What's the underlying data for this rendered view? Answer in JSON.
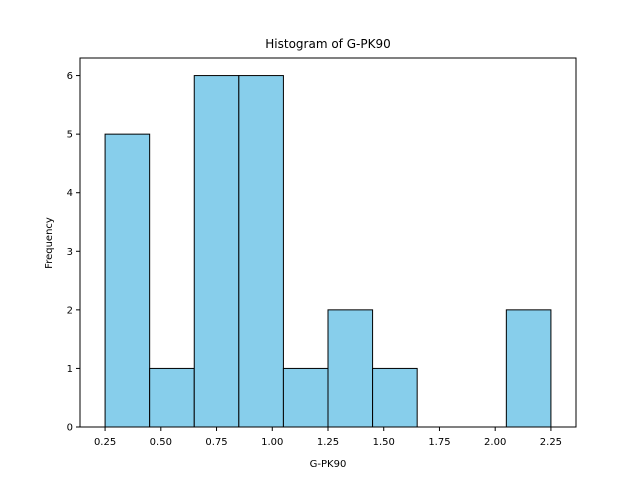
{
  "chart_data": {
    "type": "bar",
    "title": "Histogram of G-PK90",
    "xlabel": "G-PK90",
    "ylabel": "Frequency",
    "bin_edges": [
      0.25,
      0.45,
      0.65,
      0.85,
      1.05,
      1.25,
      1.45,
      1.65,
      1.85,
      2.05,
      2.25
    ],
    "values": [
      5,
      1,
      6,
      6,
      1,
      2,
      1,
      0,
      0,
      2
    ],
    "xlim": [
      0.1375,
      2.3625
    ],
    "ylim": [
      0,
      6.3
    ],
    "xticks": [
      0.25,
      0.5,
      0.75,
      1.0,
      1.25,
      1.5,
      1.75,
      2.0,
      2.25
    ],
    "xtick_labels": [
      "0.25",
      "0.50",
      "0.75",
      "1.00",
      "1.25",
      "1.50",
      "1.75",
      "2.00",
      "2.25"
    ],
    "yticks": [
      0,
      1,
      2,
      3,
      4,
      5,
      6
    ],
    "ytick_labels": [
      "0",
      "1",
      "2",
      "3",
      "4",
      "5",
      "6"
    ],
    "grid": false,
    "bar_color": "#87ceeb",
    "edge_color": "#000000"
  }
}
